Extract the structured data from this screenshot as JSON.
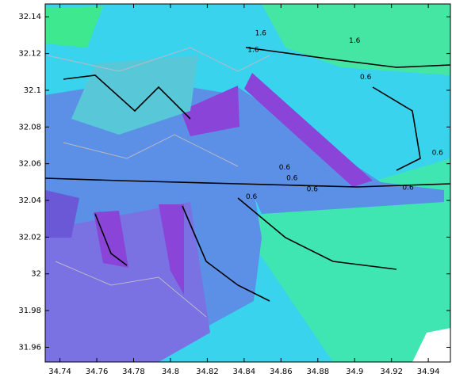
{
  "chart_data": {
    "type": "contour",
    "xlim": [
      34.732,
      34.952
    ],
    "ylim": [
      31.952,
      32.147
    ],
    "xticks": [
      34.74,
      34.76,
      34.78,
      34.8,
      34.82,
      34.84,
      34.86,
      34.88,
      34.9,
      34.92,
      34.94
    ],
    "yticks": [
      31.96,
      31.98,
      32,
      32.02,
      32.04,
      32.06,
      32.08,
      32.1,
      32.12,
      32.14
    ],
    "contour_labels": [
      {
        "x": 34.849,
        "y": 32.131,
        "value": 1.6
      },
      {
        "x": 34.9,
        "y": 32.127,
        "value": 1.6
      },
      {
        "x": 34.845,
        "y": 32.122,
        "value": 1.6
      },
      {
        "x": 34.906,
        "y": 32.107,
        "value": 0.6
      },
      {
        "x": 34.862,
        "y": 32.058,
        "value": 0.6
      },
      {
        "x": 34.866,
        "y": 32.052,
        "value": 0.6
      },
      {
        "x": 34.877,
        "y": 32.046,
        "value": 0.6
      },
      {
        "x": 34.929,
        "y": 32.047,
        "value": 0.6
      },
      {
        "x": 34.844,
        "y": 32.042,
        "value": 0.6
      },
      {
        "x": 34.945,
        "y": 32.066,
        "value": 0.6
      }
    ]
  }
}
